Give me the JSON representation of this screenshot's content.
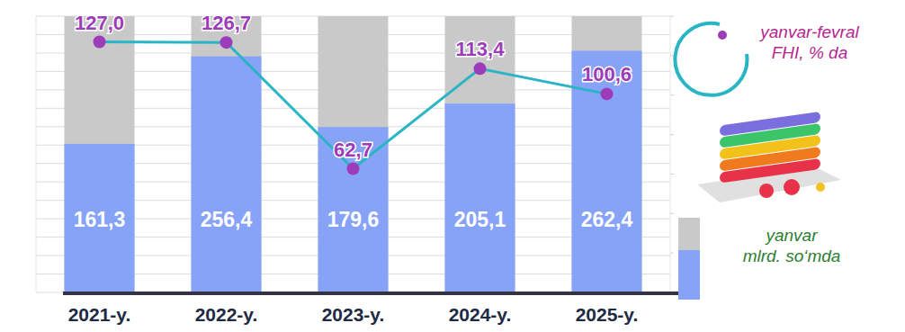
{
  "chart_data": {
    "type": "bar",
    "categories": [
      "2021-y.",
      "2022-y.",
      "2023-y.",
      "2024-y.",
      "2025-y."
    ],
    "series": [
      {
        "name": "yanvar mlrd. so‘mda",
        "type": "bar",
        "color": "#87a3f7",
        "values": [
          161.3,
          256.4,
          179.6,
          205.1,
          262.4
        ],
        "value_labels": [
          "161,3",
          "256,4",
          "179,6",
          "205,1",
          "262,4"
        ]
      },
      {
        "name": "yanvar-fevral FHI, % da",
        "type": "line",
        "axis": "y2",
        "color": "#2ab5c5",
        "marker": "circle",
        "values": [
          127.0,
          126.7,
          62.7,
          113.4,
          100.6
        ],
        "value_labels": [
          "127,0",
          "126,7",
          "62,7",
          "113,4",
          "100,6"
        ]
      }
    ],
    "ylim": [
      0,
      300
    ],
    "yticks": [
      0,
      20,
      40,
      60,
      80,
      100,
      120,
      140,
      160,
      180,
      200,
      220,
      240,
      260,
      280,
      300
    ],
    "y2lim": [
      0,
      140
    ],
    "y2ticks": [
      0,
      20,
      40,
      60,
      80,
      100,
      120,
      140
    ],
    "grid": true,
    "data_labels": true,
    "tick_labels": "x",
    "legend": "right"
  }
}
